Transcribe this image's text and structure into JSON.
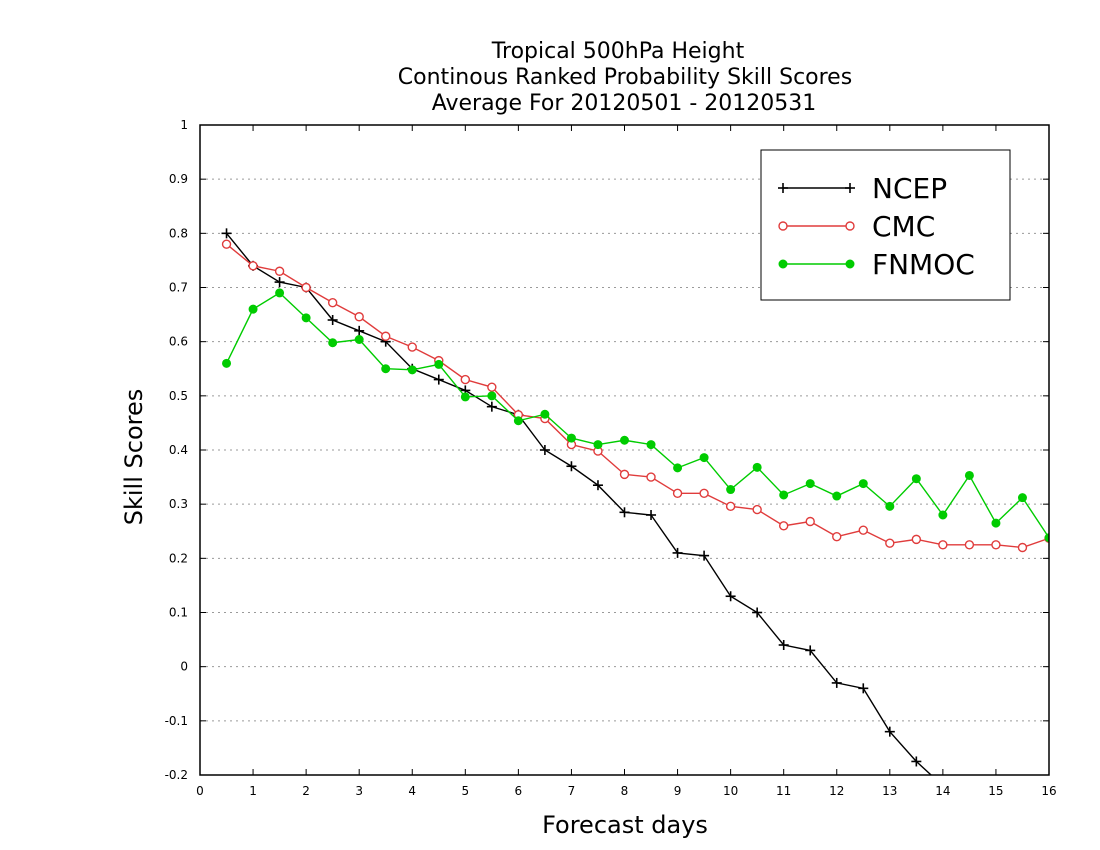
{
  "chart_data": {
    "type": "line",
    "title": [
      "Tropical 500hPa Height",
      "Continous Ranked Probability Skill Scores",
      "Average For 20120501 - 20120531"
    ],
    "xlabel": "Forecast days",
    "ylabel": "Skill Scores",
    "xlim": [
      0,
      16
    ],
    "ylim": [
      -0.2,
      1
    ],
    "x_ticks": [
      "0",
      "1",
      "2",
      "3",
      "4",
      "5",
      "6",
      "7",
      "8",
      "9",
      "10",
      "11",
      "12",
      "13",
      "14",
      "15",
      "16"
    ],
    "y_ticks": [
      "-0.2",
      "-0.1",
      "0",
      "0.1",
      "0.2",
      "0.3",
      "0.4",
      "0.5",
      "0.6",
      "0.7",
      "0.8",
      "0.9",
      "1"
    ],
    "grid": "horizontal dotted",
    "legend_position": "top-right",
    "x": [
      0.5,
      1,
      1.5,
      2,
      2.5,
      3,
      3.5,
      4,
      4.5,
      5,
      5.5,
      6,
      6.5,
      7,
      7.5,
      8,
      8.5,
      9,
      9.5,
      10,
      10.5,
      11,
      11.5,
      12,
      12.5,
      13,
      13.5,
      14,
      14.5,
      15,
      15.5,
      16
    ],
    "series": [
      {
        "name": "NCEP",
        "color": "#000000",
        "marker": "plus",
        "values": [
          0.8,
          0.74,
          0.71,
          0.7,
          0.64,
          0.62,
          0.6,
          0.55,
          0.53,
          0.51,
          0.48,
          0.465,
          0.4,
          0.37,
          0.335,
          0.285,
          0.28,
          0.21,
          0.205,
          0.13,
          0.1,
          0.04,
          0.03,
          -0.03,
          -0.04,
          -0.12,
          -0.175,
          -0.22,
          null,
          null,
          null,
          null
        ]
      },
      {
        "name": "CMC",
        "color": "#e03c3c",
        "marker": "open-circle",
        "values": [
          0.78,
          0.74,
          0.73,
          0.7,
          0.672,
          0.646,
          0.61,
          0.59,
          0.565,
          0.53,
          0.516,
          0.465,
          0.458,
          0.41,
          0.398,
          0.355,
          0.35,
          0.32,
          0.32,
          0.296,
          0.29,
          0.26,
          0.268,
          0.24,
          0.252,
          0.228,
          0.235,
          0.225,
          0.225,
          0.225,
          0.22,
          0.237
        ]
      },
      {
        "name": "FNMOC",
        "color": "#00cc00",
        "marker": "filled-circle",
        "values": [
          0.56,
          0.66,
          0.69,
          0.644,
          0.598,
          0.604,
          0.55,
          0.548,
          0.558,
          0.498,
          0.5,
          0.454,
          0.466,
          0.422,
          0.41,
          0.418,
          0.41,
          0.367,
          0.386,
          0.327,
          0.368,
          0.317,
          0.338,
          0.315,
          0.338,
          0.296,
          0.347,
          0.28,
          0.353,
          0.265,
          0.312,
          0.238
        ]
      }
    ]
  }
}
